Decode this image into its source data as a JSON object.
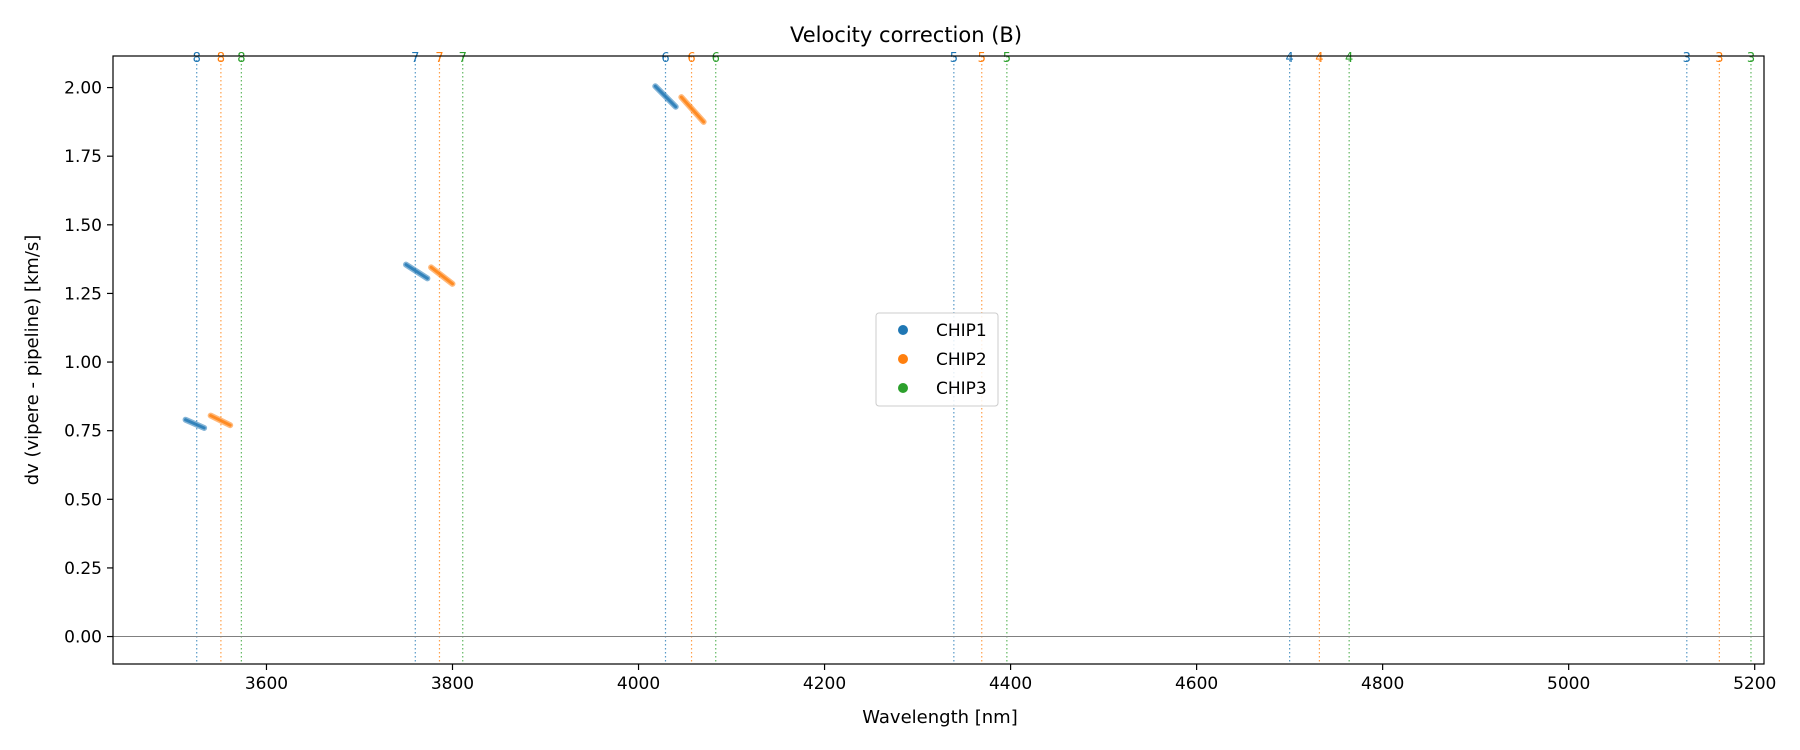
{
  "chart_data": {
    "type": "scatter",
    "title": "Velocity correction (B)",
    "xlabel": "Wavelength [nm]",
    "ylabel": "dv (vipere - pipeline) [km/s]",
    "xlim": [
      3435,
      5210
    ],
    "ylim": [
      -0.1,
      2.115
    ],
    "x_ticks": [
      3600,
      3800,
      4000,
      4200,
      4400,
      4600,
      4800,
      5000,
      5200
    ],
    "y_ticks": [
      0.0,
      0.25,
      0.5,
      0.75,
      1.0,
      1.25,
      1.5,
      1.75,
      2.0
    ],
    "y_tick_labels": [
      "0.00",
      "0.25",
      "0.50",
      "0.75",
      "1.00",
      "1.25",
      "1.50",
      "1.75",
      "2.00"
    ],
    "hline": 0.0,
    "grid": false,
    "legend_position": "center",
    "series": [
      {
        "name": "CHIP1",
        "color": "#1f77b4",
        "segments": [
          {
            "x": [
              3513,
              3533
            ],
            "y": [
              0.79,
              0.76
            ]
          },
          {
            "x": [
              3750,
              3773
            ],
            "y": [
              1.355,
              1.305
            ]
          },
          {
            "x": [
              4018,
              4040
            ],
            "y": [
              2.005,
              1.93
            ]
          }
        ]
      },
      {
        "name": "CHIP2",
        "color": "#ff7f0e",
        "segments": [
          {
            "x": [
              3540,
              3561
            ],
            "y": [
              0.805,
              0.77
            ]
          },
          {
            "x": [
              3777,
              3800
            ],
            "y": [
              1.345,
              1.285
            ]
          },
          {
            "x": [
              4046,
              4070
            ],
            "y": [
              1.965,
              1.875
            ]
          }
        ]
      },
      {
        "name": "CHIP3",
        "color": "#2ca02c",
        "segments": []
      }
    ],
    "order_markers": [
      {
        "order": "8",
        "positions": [
          3525,
          3551,
          3573
        ]
      },
      {
        "order": "7",
        "positions": [
          3760,
          3786,
          3811
        ]
      },
      {
        "order": "6",
        "positions": [
          4029,
          4057,
          4083
        ]
      },
      {
        "order": "5",
        "positions": [
          4339,
          4369,
          4396
        ]
      },
      {
        "order": "4",
        "positions": [
          4700,
          4732,
          4764
        ]
      },
      {
        "order": "3",
        "positions": [
          5127,
          5162,
          5196
        ]
      }
    ]
  }
}
